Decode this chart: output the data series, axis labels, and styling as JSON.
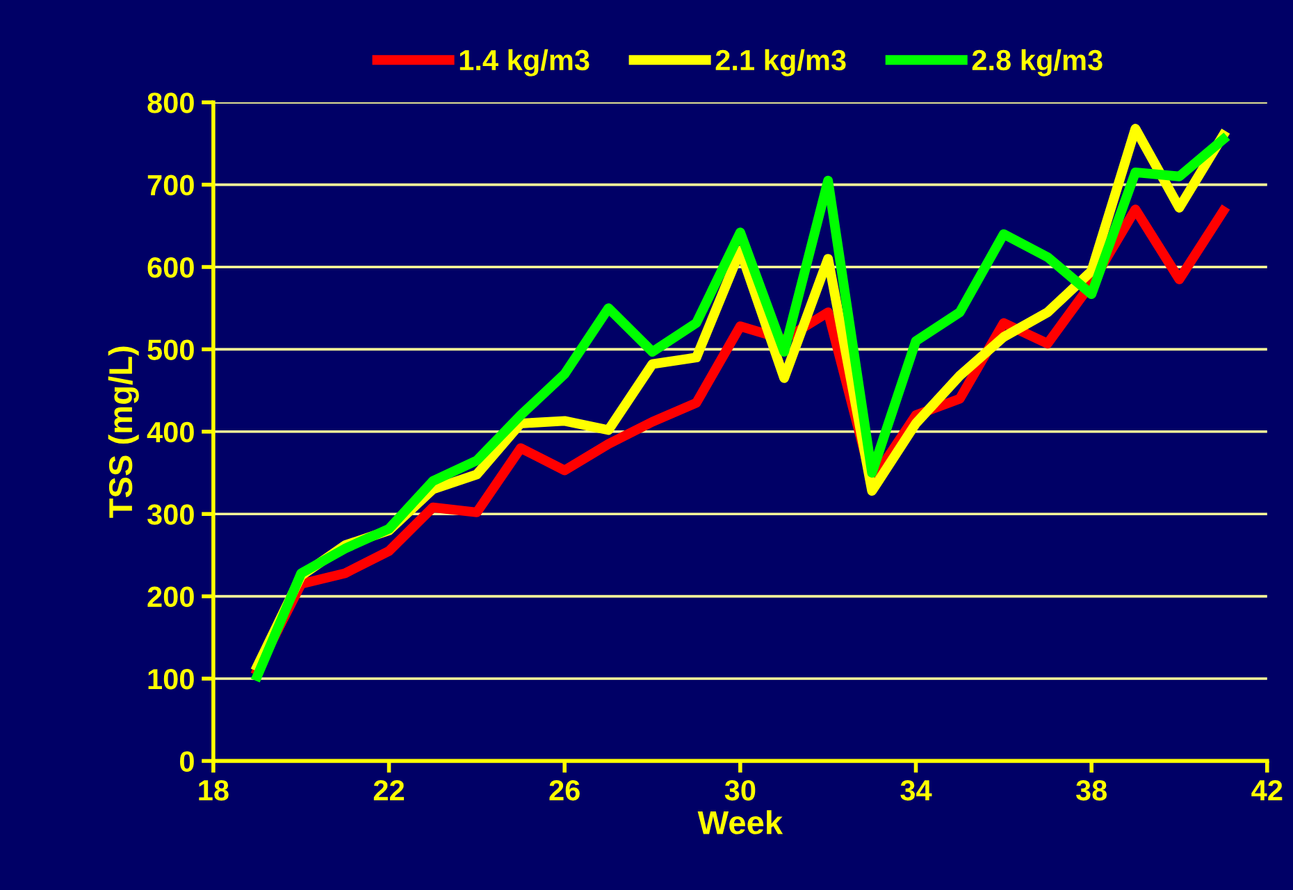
{
  "chart_data": {
    "type": "line",
    "xlabel": "Week",
    "ylabel": "TSS (mg/L)",
    "x": [
      19,
      20,
      21,
      22,
      23,
      24,
      25,
      26,
      27,
      28,
      29,
      30,
      31,
      32,
      33,
      34,
      35,
      36,
      37,
      38,
      39,
      40,
      41
    ],
    "series": [
      {
        "name": "1.4 kg/m3",
        "color": "#ff0000",
        "values": [
          110,
          215,
          228,
          255,
          308,
          302,
          380,
          353,
          385,
          412,
          435,
          528,
          512,
          545,
          340,
          420,
          440,
          532,
          507,
          580,
          670,
          585,
          668
        ]
      },
      {
        "name": "2.1 kg/m3",
        "color": "#ffff00",
        "values": [
          115,
          225,
          262,
          280,
          330,
          348,
          410,
          413,
          402,
          482,
          490,
          620,
          465,
          610,
          328,
          410,
          468,
          515,
          545,
          595,
          768,
          672,
          760
        ]
      },
      {
        "name": "2.8 kg/m3",
        "color": "#00ff00",
        "values": [
          103,
          228,
          258,
          282,
          340,
          365,
          420,
          470,
          550,
          497,
          532,
          642,
          497,
          705,
          350,
          510,
          545,
          640,
          612,
          567,
          715,
          710,
          755
        ]
      }
    ],
    "xlim": [
      18,
      42
    ],
    "xticks": [
      18,
      22,
      26,
      30,
      34,
      38,
      42
    ],
    "ylim": [
      0,
      800
    ],
    "yticks": [
      0,
      100,
      200,
      300,
      400,
      500,
      600,
      700,
      800
    ],
    "grid": "y",
    "legend": "top",
    "marker": "none",
    "line_style": "solid"
  }
}
